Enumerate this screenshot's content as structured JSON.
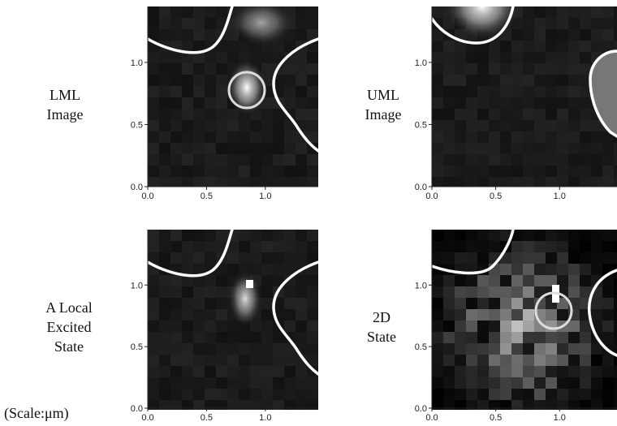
{
  "scale_note": "(Scale:μm)",
  "chart_data": [
    {
      "type": "image",
      "label": [
        "LML",
        "Image"
      ],
      "xlim": [
        0,
        1.45
      ],
      "ylim": [
        0,
        1.45
      ],
      "xticks": [
        {
          "value": 0,
          "label": "0.0"
        },
        0.5,
        {
          "value": 1,
          "label": "1.0"
        }
      ],
      "yticks": [
        {
          "value": 0,
          "label": "0.0"
        },
        0.5,
        {
          "value": 1,
          "label": "1.0"
        }
      ]
    },
    {
      "type": "image",
      "label": [
        "UML",
        "Image"
      ],
      "xlim": [
        0,
        1.45
      ],
      "ylim": [
        0,
        1.45
      ],
      "xticks": [
        {
          "value": 0,
          "label": "0.0"
        },
        0.5,
        {
          "value": 1,
          "label": "1.0"
        }
      ],
      "yticks": [
        {
          "value": 0,
          "label": "0.0"
        },
        0.5,
        {
          "value": 1,
          "label": "1.0"
        }
      ]
    },
    {
      "type": "image",
      "label": [
        "A Local",
        "Excited",
        "State"
      ],
      "xlim": [
        0,
        1.45
      ],
      "ylim": [
        0,
        1.45
      ],
      "xticks": [
        {
          "value": 0,
          "label": "0.0"
        },
        0.5,
        {
          "value": 1,
          "label": "1.0"
        }
      ],
      "yticks": [
        {
          "value": 0,
          "label": "0.0"
        },
        0.5,
        {
          "value": 1,
          "label": "1.0"
        }
      ]
    },
    {
      "type": "image",
      "label": [
        "2D",
        "State"
      ],
      "xlim": [
        0,
        1.45
      ],
      "ylim": [
        0,
        1.45
      ],
      "xticks": [
        {
          "value": 0,
          "label": "0.0"
        },
        0.5,
        {
          "value": 1,
          "label": "1.0"
        }
      ],
      "yticks": [
        {
          "value": 0,
          "label": "0.0"
        },
        0.5,
        {
          "value": 1,
          "label": "1.0"
        }
      ]
    }
  ]
}
